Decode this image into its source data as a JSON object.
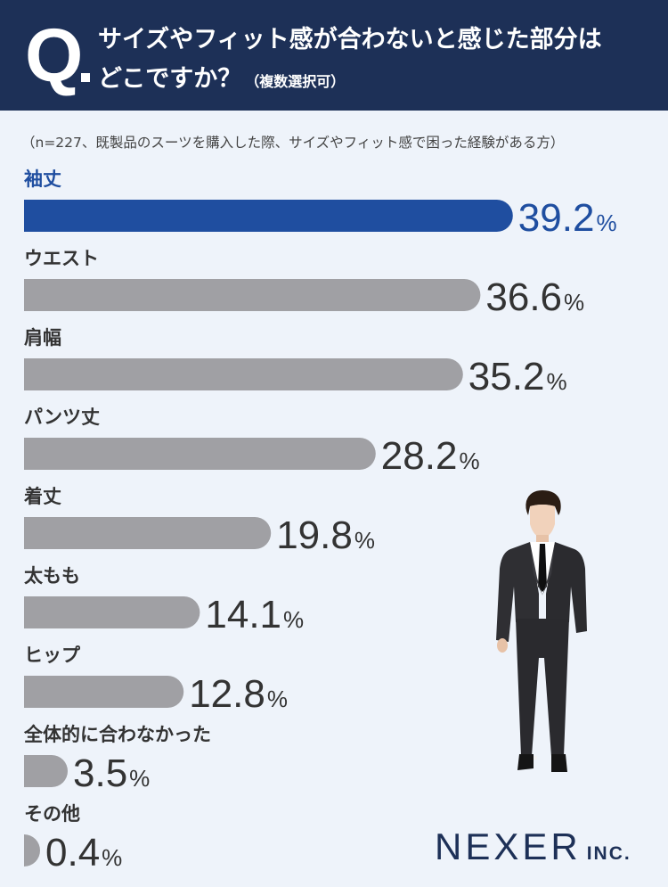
{
  "header": {
    "q_mark": "Q",
    "line1": "サイズやフィット感が合わないと感じた部分は",
    "line2": "どこですか？",
    "note": "（複数選択可）"
  },
  "subtitle": "（n=227、既製品のスーツを購入した際、サイズやフィット感で困った経験がある方）",
  "logo": {
    "main": "NEXER",
    "sub": "INC."
  },
  "colors": {
    "header_bg": "#1d3057",
    "highlight": "#1f4ea0",
    "bar_gray": "#a0a0a4",
    "background": "#eef3fa",
    "value_text": "#333333"
  },
  "illustration": "businessman-in-black-suit",
  "chart_data": {
    "type": "bar",
    "orientation": "horizontal",
    "categories": [
      "袖丈",
      "ウエスト",
      "肩幅",
      "パンツ丈",
      "着丈",
      "太もも",
      "ヒップ",
      "全体的に合わなかった",
      "その他"
    ],
    "values": [
      39.2,
      36.6,
      35.2,
      28.2,
      19.8,
      14.1,
      12.8,
      3.5,
      0.4
    ],
    "unit": "%",
    "highlight_index": 0
  }
}
